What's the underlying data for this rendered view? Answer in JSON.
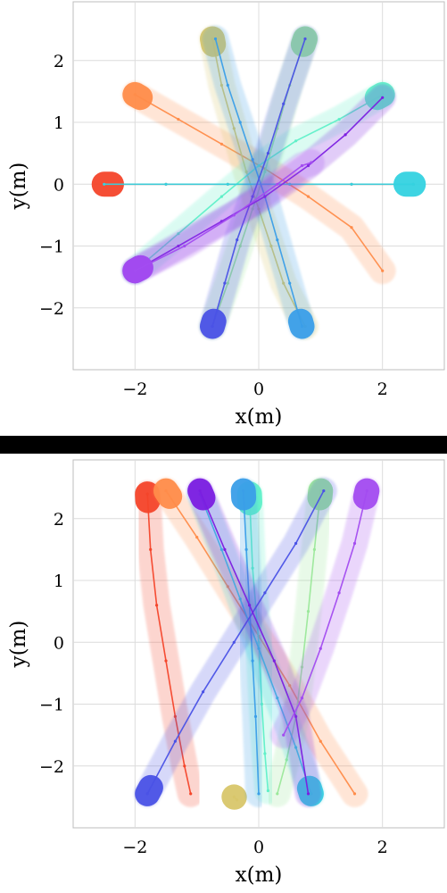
{
  "chart_data": [
    {
      "type": "line",
      "subtype": "trajectory-plot",
      "title": "",
      "xlabel": "x(m)",
      "ylabel": "y(m)",
      "xlim": [
        -3.0,
        3.0
      ],
      "ylim": [
        -3.0,
        2.95
      ],
      "xticks": [
        -2,
        0,
        2
      ],
      "yticks": [
        2,
        1,
        0,
        -1,
        -2
      ],
      "xtick_labels": [
        "−2",
        "0",
        "2"
      ],
      "ytick_labels": [
        "2",
        "1",
        "0",
        "−1",
        "−2"
      ],
      "grid": true,
      "series": [
        {
          "color": "#f4452a",
          "x": [
            -2.5,
            -1.5,
            -0.5,
            0.5,
            1.5,
            2.5
          ],
          "y": [
            0.0,
            0.0,
            0.0,
            0.0,
            0.0,
            0.0
          ]
        },
        {
          "color": "#ff8c4a",
          "x": [
            -2.0,
            -1.3,
            -0.6,
            0.1,
            0.8,
            1.5,
            2.0
          ],
          "y": [
            1.45,
            1.05,
            0.65,
            0.25,
            -0.2,
            -0.7,
            -1.4
          ]
        },
        {
          "color": "#d8c66a",
          "x": [
            -0.75,
            -0.6,
            -0.4,
            -0.2,
            0.0,
            0.2,
            0.4,
            0.75
          ],
          "y": [
            2.35,
            1.6,
            0.9,
            0.2,
            -0.4,
            -1.0,
            -1.6,
            -2.3
          ]
        },
        {
          "color": "#9be89a",
          "x": [
            0.75,
            0.5,
            0.3,
            0.1,
            -0.1,
            -0.3,
            -0.5,
            -0.75
          ],
          "y": [
            2.35,
            1.6,
            0.9,
            0.2,
            -0.4,
            -1.0,
            -1.6,
            -2.3
          ]
        },
        {
          "color": "#5ff0c8",
          "x": [
            2.0,
            1.3,
            0.6,
            0.0,
            -0.6,
            -1.3,
            -2.0
          ],
          "y": [
            1.45,
            1.05,
            0.7,
            0.3,
            -0.2,
            -0.8,
            -1.4
          ]
        },
        {
          "color": "#34d2e0",
          "x": [
            2.5,
            1.5,
            0.5,
            -0.5,
            -1.5,
            -2.5
          ],
          "y": [
            0.0,
            0.0,
            0.0,
            0.0,
            0.0,
            0.0
          ]
        },
        {
          "color": "#3a9ee8",
          "x": [
            0.7,
            0.5,
            0.3,
            0.1,
            -0.1,
            -0.3,
            -0.5,
            -0.7
          ],
          "y": [
            -2.3,
            -1.6,
            -0.9,
            -0.2,
            0.4,
            1.0,
            1.6,
            2.35
          ]
        },
        {
          "color": "#4a52e6",
          "x": [
            -0.75,
            -0.55,
            -0.35,
            -0.1,
            0.15,
            0.4,
            0.75
          ],
          "y": [
            -2.3,
            -1.6,
            -0.9,
            -0.2,
            0.5,
            1.3,
            2.35
          ]
        },
        {
          "color": "#7b1ee0",
          "x": [
            -2.0,
            -1.3,
            -0.6,
            0.1,
            0.8,
            1.4,
            2.0
          ],
          "y": [
            -1.4,
            -1.0,
            -0.6,
            -0.2,
            0.3,
            0.8,
            1.4
          ]
        },
        {
          "color": "#a34cf0",
          "x": [
            -2.0,
            -1.2,
            -0.4,
            0.3,
            0.7,
            0.85
          ],
          "y": [
            -1.4,
            -1.0,
            -0.5,
            0.0,
            0.3,
            0.35
          ]
        }
      ]
    },
    {
      "type": "line",
      "subtype": "trajectory-plot",
      "title": "",
      "xlabel": "x(m)",
      "ylabel": "y(m)",
      "xlim": [
        -3.0,
        3.0
      ],
      "ylim": [
        -3.0,
        2.95
      ],
      "xticks": [
        -2,
        0,
        2
      ],
      "yticks": [
        2,
        1,
        0,
        -1,
        -2
      ],
      "xtick_labels": [
        "−2",
        "0",
        "2"
      ],
      "ytick_labels": [
        "2",
        "1",
        "0",
        "−1",
        "−2"
      ],
      "grid": true,
      "series": [
        {
          "color": "#f4452a",
          "x": [
            -1.8,
            -1.75,
            -1.65,
            -1.5,
            -1.35,
            -1.2,
            -1.1
          ],
          "y": [
            2.4,
            1.5,
            0.6,
            -0.3,
            -1.2,
            -2.0,
            -2.45
          ]
        },
        {
          "color": "#ff8c4a",
          "x": [
            -1.5,
            -1.0,
            -0.5,
            0.0,
            0.5,
            1.0,
            1.55
          ],
          "y": [
            2.45,
            1.7,
            0.9,
            0.1,
            -0.7,
            -1.6,
            -2.45
          ]
        },
        {
          "color": "#d8c66a",
          "x": [
            -0.4,
            -0.35
          ],
          "y": [
            -2.5,
            -2.55
          ]
        },
        {
          "color": "#9be89a",
          "x": [
            1.0,
            0.9,
            0.8,
            0.7,
            0.6,
            0.45,
            0.3
          ],
          "y": [
            2.45,
            1.5,
            0.5,
            -0.4,
            -1.2,
            -1.9,
            -2.45
          ]
        },
        {
          "color": "#5ff0c8",
          "x": [
            -0.15,
            -0.1,
            0.0,
            0.05,
            0.1,
            0.15
          ],
          "y": [
            2.4,
            1.2,
            0.0,
            -1.0,
            -1.8,
            -2.4
          ]
        },
        {
          "color": "#34d2e0",
          "x": [
            0.85,
            0.6,
            0.3,
            0.0,
            -0.3,
            -0.6,
            -0.95
          ],
          "y": [
            -2.45,
            -1.7,
            -0.9,
            -0.1,
            0.7,
            1.5,
            2.4
          ]
        },
        {
          "color": "#3a9ee8",
          "x": [
            -0.25,
            -0.2,
            -0.15,
            -0.1,
            -0.05,
            0.0
          ],
          "y": [
            2.45,
            1.5,
            0.6,
            -0.3,
            -1.2,
            -2.45
          ]
        },
        {
          "color": "#4a52e6",
          "x": [
            -1.8,
            -1.35,
            -0.9,
            -0.4,
            0.1,
            0.6,
            1.05
          ],
          "y": [
            -2.45,
            -1.6,
            -0.8,
            0.0,
            0.8,
            1.6,
            2.45
          ]
        },
        {
          "color": "#7b1ee0",
          "x": [
            -0.95,
            -0.55,
            -0.15,
            0.25,
            0.6,
            0.8
          ],
          "y": [
            2.45,
            1.5,
            0.6,
            -0.3,
            -1.2,
            -2.45
          ]
        },
        {
          "color": "#a34cf0",
          "x": [
            1.75,
            1.55,
            1.3,
            1.0,
            0.7,
            0.4
          ],
          "y": [
            2.45,
            1.6,
            0.8,
            -0.1,
            -0.9,
            -1.5
          ]
        }
      ]
    }
  ]
}
